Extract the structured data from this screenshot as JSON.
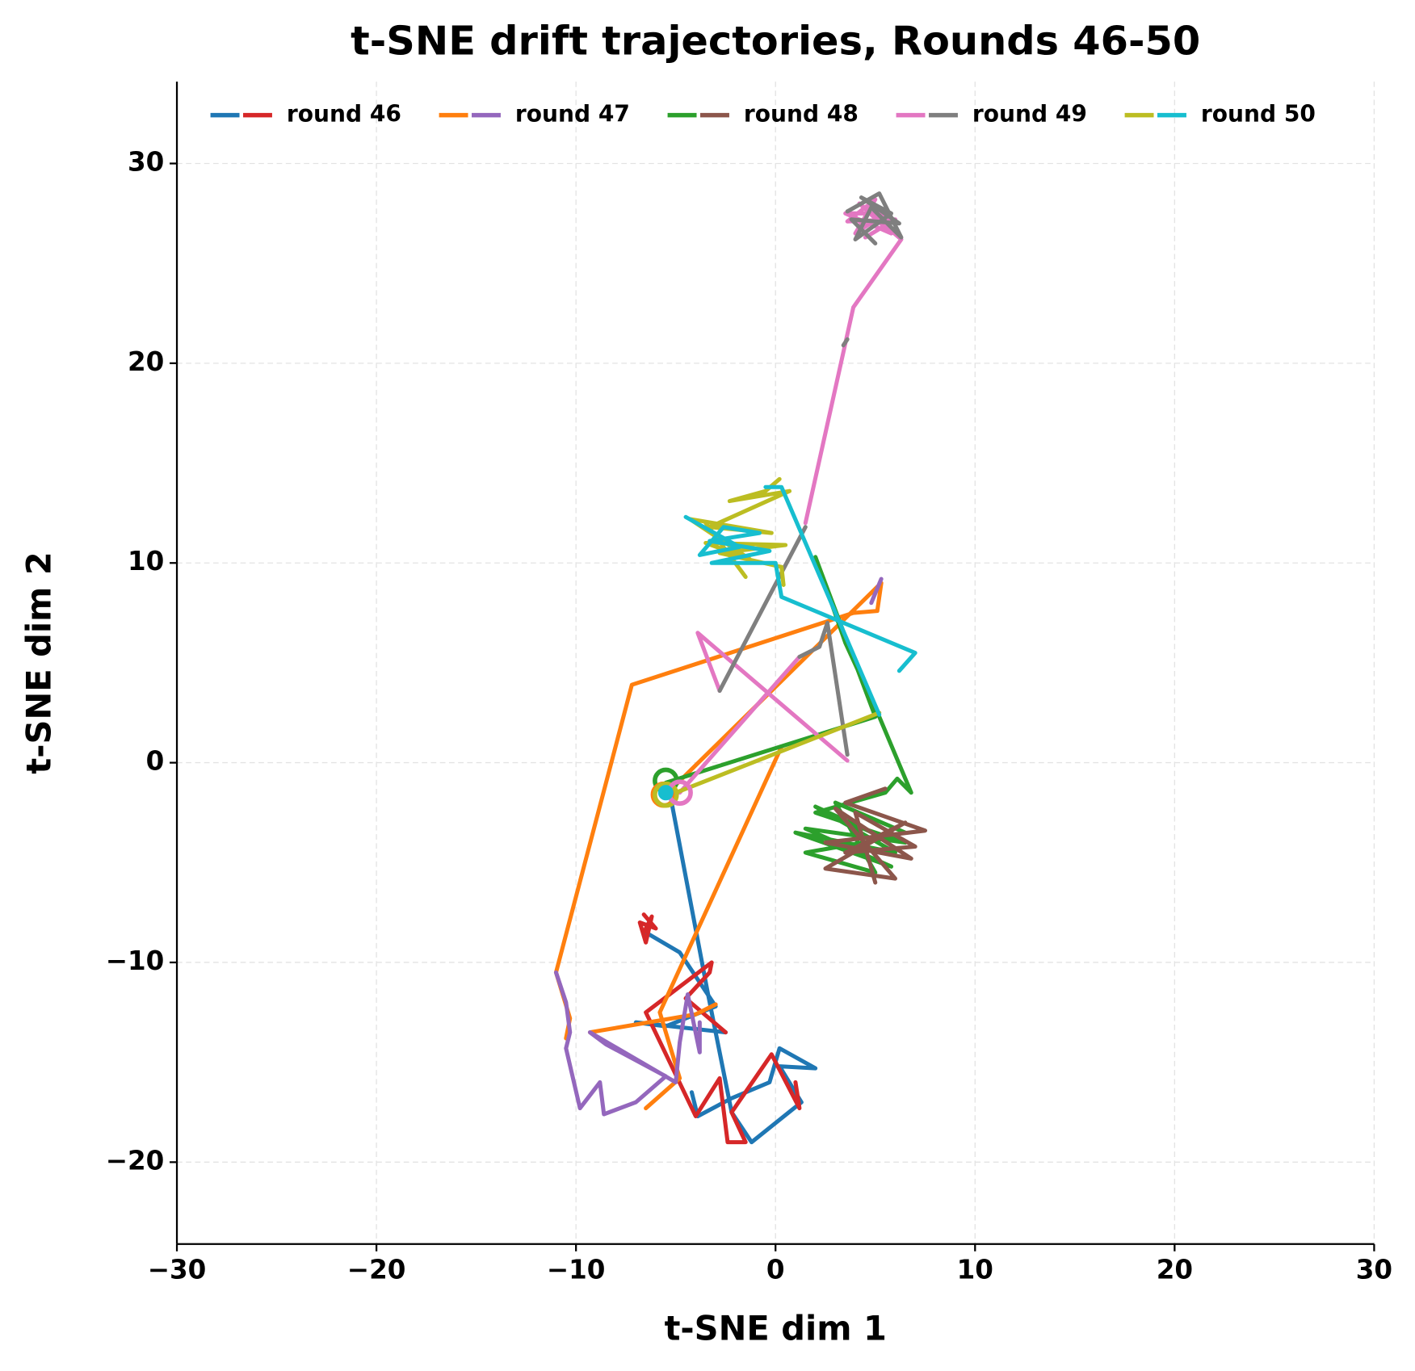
{
  "chart_data": {
    "type": "trajectory",
    "title": "t-SNE drift trajectories, Rounds 46-50",
    "xlabel": "t-SNE dim 1",
    "ylabel": "t-SNE dim 2",
    "xlim": [
      -30,
      30
    ],
    "ylim": [
      -24.1,
      34.1
    ],
    "xticks": [
      {
        "value": -30,
        "label": "−30"
      },
      {
        "value": -20,
        "label": "−20"
      },
      {
        "value": -10,
        "label": "−10"
      },
      0,
      10,
      20,
      30
    ],
    "yticks": [
      {
        "value": -20,
        "label": "−20"
      },
      {
        "value": -10,
        "label": "−10"
      },
      0,
      10,
      20,
      30
    ],
    "grid": true,
    "legend": "top",
    "rounds": [
      {
        "name": "round 46",
        "trajectories": [
          {
            "color": "#1f77b4",
            "x": [
              -5.3,
              -3.4,
              -2.2,
              -1.2,
              1.3,
              0.2,
              2,
              0.2,
              -0.3,
              -2.2,
              -3.9,
              -4.2,
              null,
              -6.5,
              -4.8,
              -3,
              -5.5,
              -7,
              -2.5
            ],
            "y": [
              -1.5,
              -11.5,
              -17.5,
              -19,
              -17,
              -15.2,
              -15.3,
              -14.3,
              -16,
              -16.8,
              -17.7,
              -16.5,
              null,
              -8.5,
              -9.5,
              -12.2,
              -13.2,
              -13,
              -13.5
            ]
          },
          {
            "color": "#d62728",
            "x": [
              -2.5,
              -4.5,
              -3.3,
              -3.2,
              -6.5,
              -4,
              -2.8,
              -2.4,
              -1.5,
              -2.2,
              -0.2,
              1.2,
              1,
              null,
              -6.6,
              -6.2,
              -6.5,
              -6.8,
              -6,
              -6.6
            ],
            "y": [
              -13.5,
              -11.8,
              -10.5,
              -10,
              -12.5,
              -17.7,
              -15.8,
              -19,
              -19,
              -17.5,
              -14.6,
              -17.3,
              -16,
              null,
              -8.5,
              -7.7,
              -9,
              -8,
              -8.3,
              -7.6
            ]
          }
        ]
      },
      {
        "name": "round 47",
        "trajectories": [
          {
            "color": "#ff7f0e",
            "x": [
              -5.5,
              5.3,
              5.1,
              3.9,
              -7.2,
              -11,
              -10.3,
              -10.5,
              null,
              -6.5,
              -4.8,
              -5.8,
              0.3,
              null,
              -9.3,
              -4,
              -3
            ],
            "y": [
              -1.6,
              9,
              7.6,
              7.5,
              3.9,
              -10.5,
              -12.8,
              -13.8,
              null,
              -17.3,
              -15.8,
              -12.5,
              0.8,
              null,
              -13.5,
              -12.6,
              -12.1
            ]
          },
          {
            "color": "#9467bd",
            "x": [
              -11,
              -10.5,
              -10.3,
              -10.5,
              -9.8,
              -8.8,
              -8.6,
              -7,
              -5.5,
              -8.5,
              -9.3,
              -5,
              -4.8,
              -4.4,
              -3.8,
              -3.8,
              null,
              5.3,
              4.8,
              5
            ],
            "y": [
              -10.5,
              -12,
              -13.5,
              -14.3,
              -17.3,
              -16,
              -17.6,
              -17,
              -15.7,
              -14.1,
              -13.5,
              -16,
              -14,
              -11.6,
              -14.5,
              -13,
              null,
              9.2,
              8,
              8.5
            ]
          }
        ]
      },
      {
        "name": "round 48",
        "trajectories": [
          {
            "color": "#2ca02c",
            "x": [
              -5.5,
              5,
              2,
              3.5,
              5.2,
              6.8,
              6.1,
              5.5,
              2,
              6.5,
              1.5,
              5.8,
              1,
              6,
              2,
              5.5,
              1.5,
              5,
              3,
              6.5
            ],
            "y": [
              -1,
              2.3,
              10.3,
              6,
              2.3,
              -1.5,
              -0.8,
              -1.5,
              -2.5,
              -4,
              -3.3,
              -5.2,
              -3.5,
              -4.5,
              -2.2,
              -3.8,
              -4.5,
              -5.5,
              -2,
              -3.5
            ]
          },
          {
            "color": "#8c564b",
            "x": [
              5.5,
              3.5,
              7.5,
              2.5,
              6.8,
              3,
              6,
              2.5,
              6.5,
              3.5,
              7,
              4,
              5
            ],
            "y": [
              -1.3,
              -2,
              -3.4,
              -4,
              -4.8,
              -2.3,
              -5.8,
              -5.3,
              -3,
              -4.5,
              -4.2,
              -2.5,
              -6
            ]
          }
        ]
      },
      {
        "name": "round 49",
        "trajectories": [
          {
            "color": "#e377c2",
            "x": [
              -4.8,
              1.2,
              null,
              3.6,
              -3.9,
              -2.8,
              null,
              1.5,
              3.5,
              3.9,
              6.3,
              4.2,
              5.8,
              3.5,
              5.5,
              4,
              5,
              3.6,
              6,
              4.5
            ],
            "y": [
              -1.5,
              5.3,
              null,
              0.1,
              6.5,
              3.6,
              null,
              12,
              21,
              22.8,
              26.2,
              28,
              26.5,
              27.5,
              27.5,
              26.5,
              28.2,
              27.1,
              27.2,
              26.3
            ]
          },
          {
            "color": "#7f7f7f",
            "x": [
              -2.8,
              1.5,
              null,
              1.2,
              2.2,
              2.6,
              3.6,
              null,
              3.4,
              3.6,
              null,
              3.6,
              5.2,
              6.3,
              4.8,
              4,
              5.8,
              4.3,
              6.2,
              3.8,
              5
            ],
            "y": [
              3.6,
              11.8,
              null,
              5.3,
              5.8,
              7,
              0.4,
              null,
              20.9,
              21.2,
              null,
              27.6,
              28.5,
              26.3,
              27.8,
              26.2,
              27.5,
              28.3,
              27,
              27.2,
              26
            ]
          }
        ]
      },
      {
        "name": "round 50",
        "trajectories": [
          {
            "color": "#bcbd22",
            "x": [
              -5.5,
              5.2,
              null,
              0.2,
              -0.5,
              -2.3,
              0.7,
              -3.3,
              -0.2,
              -4.3,
              -1.3,
              -3.5,
              0.5,
              -2.8,
              0.3,
              0.4,
              null,
              -3.5,
              -1.5
            ],
            "y": [
              -1.7,
              2.5,
              null,
              14.2,
              13.6,
              13.1,
              13.6,
              11.8,
              11.5,
              12.2,
              10.2,
              11,
              10.9,
              10.5,
              9.8,
              8.9,
              null,
              12,
              9.3
            ]
          },
          {
            "color": "#17becf",
            "x": [
              -0.5,
              0.3,
              5.2,
              null,
              -4.5,
              -1.8,
              -3.8,
              -2.6,
              -0.8,
              -3.3,
              -0.3,
              -3.2,
              0,
              0.3,
              7,
              6.2
            ],
            "y": [
              13.8,
              13.8,
              2.4,
              null,
              12.3,
              10.8,
              10.4,
              11.8,
              11.5,
              11.1,
              10.6,
              10,
              10,
              8.3,
              5.5,
              4.6
            ]
          }
        ]
      }
    ],
    "markers": [
      {
        "x": -5.5,
        "y": -0.9,
        "color": "#2ca02c",
        "filled": false
      },
      {
        "x": -5.6,
        "y": -1.6,
        "color": "#ff7f0e",
        "filled": false
      },
      {
        "x": -5.5,
        "y": -1.6,
        "color": "#bcbd22",
        "filled": false
      },
      {
        "x": -4.8,
        "y": -1.5,
        "color": "#e377c2",
        "filled": false
      },
      {
        "x": -5.5,
        "y": -1.5,
        "color": "#17becf",
        "filled": true
      }
    ]
  }
}
